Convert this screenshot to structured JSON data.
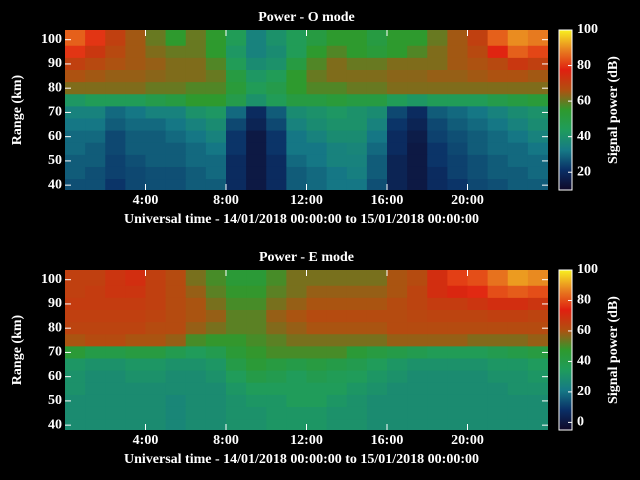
{
  "chart_data": [
    {
      "type": "heatmap",
      "title": "Power - O mode",
      "xlabel": "Universal time - 14/01/2018 00:00:00 to 15/01/2018 00:00:00",
      "ylabel": "Range (km)",
      "colorbar_label": "Signal power (dB)",
      "xlim": [
        0,
        24
      ],
      "xticks": [
        {
          "value": 4,
          "label": "4:00"
        },
        {
          "value": 8,
          "label": "8:00"
        },
        {
          "value": 12,
          "label": "12:00"
        },
        {
          "value": 16,
          "label": "16:00"
        },
        {
          "value": 20,
          "label": "20:00"
        }
      ],
      "ylim": [
        38,
        104
      ],
      "yticks": [
        40,
        50,
        60,
        70,
        80,
        90,
        100
      ],
      "clim": [
        10,
        100
      ],
      "cticks": [
        20,
        40,
        60,
        80,
        100
      ],
      "colormap": [
        "#100828",
        "#0a2f66",
        "#167a86",
        "#1f9c5c",
        "#2e9a2e",
        "#b05010",
        "#e02010",
        "#e88020",
        "#f8f020"
      ],
      "x": [
        0.5,
        1.5,
        2.5,
        3.5,
        4.5,
        5.5,
        6.5,
        7.5,
        8.5,
        9.5,
        10.5,
        11.5,
        12.5,
        13.5,
        14.5,
        15.5,
        16.5,
        17.5,
        18.5,
        19.5,
        20.5,
        21.5,
        22.5,
        23.5
      ],
      "y": [
        100,
        95,
        90,
        85,
        80,
        75,
        70,
        65,
        60,
        55,
        50,
        45,
        40
      ],
      "z": [
        [
          85,
          80,
          70,
          65,
          60,
          55,
          60,
          55,
          45,
          35,
          40,
          45,
          50,
          55,
          55,
          50,
          55,
          55,
          60,
          65,
          70,
          85,
          90,
          88
        ],
        [
          80,
          72,
          68,
          65,
          62,
          60,
          60,
          55,
          42,
          35,
          38,
          45,
          55,
          58,
          55,
          52,
          55,
          58,
          62,
          65,
          68,
          78,
          85,
          82
        ],
        [
          70,
          68,
          66,
          65,
          64,
          62,
          62,
          58,
          45,
          38,
          40,
          50,
          58,
          62,
          60,
          60,
          62,
          62,
          62,
          65,
          66,
          68,
          72,
          70
        ],
        [
          66,
          65,
          64,
          64,
          63,
          62,
          62,
          60,
          50,
          42,
          45,
          55,
          60,
          62,
          62,
          62,
          63,
          63,
          64,
          64,
          65,
          66,
          66,
          65
        ],
        [
          62,
          62,
          62,
          62,
          60,
          60,
          58,
          58,
          52,
          45,
          48,
          55,
          58,
          58,
          60,
          60,
          62,
          62,
          62,
          62,
          62,
          62,
          62,
          62
        ],
        [
          42,
          45,
          45,
          45,
          48,
          50,
          55,
          55,
          48,
          40,
          45,
          50,
          50,
          52,
          50,
          50,
          45,
          42,
          45,
          45,
          45,
          48,
          50,
          52
        ],
        [
          35,
          35,
          30,
          32,
          35,
          35,
          40,
          42,
          30,
          20,
          28,
          38,
          40,
          42,
          40,
          38,
          25,
          20,
          28,
          30,
          32,
          35,
          38,
          40
        ],
        [
          32,
          32,
          28,
          30,
          30,
          32,
          35,
          38,
          25,
          18,
          25,
          35,
          38,
          40,
          40,
          35,
          22,
          18,
          25,
          28,
          30,
          32,
          35,
          38
        ],
        [
          30,
          30,
          25,
          28,
          28,
          30,
          32,
          35,
          22,
          15,
          22,
          32,
          35,
          38,
          38,
          32,
          20,
          16,
          24,
          26,
          28,
          30,
          32,
          35
        ],
        [
          30,
          28,
          25,
          28,
          28,
          28,
          30,
          32,
          22,
          15,
          22,
          32,
          32,
          35,
          36,
          30,
          20,
          15,
          22,
          25,
          28,
          30,
          30,
          32
        ],
        [
          28,
          28,
          24,
          26,
          28,
          28,
          30,
          30,
          20,
          15,
          20,
          30,
          32,
          35,
          35,
          28,
          18,
          15,
          22,
          24,
          26,
          28,
          30,
          30
        ],
        [
          28,
          26,
          24,
          25,
          26,
          26,
          28,
          30,
          20,
          15,
          20,
          28,
          30,
          32,
          34,
          28,
          18,
          15,
          20,
          24,
          26,
          28,
          28,
          30
        ],
        [
          26,
          26,
          22,
          25,
          26,
          26,
          28,
          28,
          20,
          15,
          20,
          28,
          30,
          32,
          32,
          26,
          18,
          15,
          20,
          22,
          25,
          26,
          28,
          28
        ]
      ]
    },
    {
      "type": "heatmap",
      "title": "Power - E mode",
      "xlabel": "Universal time - 14/01/2018 00:00:00 to 15/01/2018 00:00:00",
      "ylabel": "Range (km)",
      "colorbar_label": "Signal power (dB)",
      "xlim": [
        0,
        24
      ],
      "xticks": [
        {
          "value": 4,
          "label": "4:00"
        },
        {
          "value": 8,
          "label": "8:00"
        },
        {
          "value": 12,
          "label": "12:00"
        },
        {
          "value": 16,
          "label": "16:00"
        },
        {
          "value": 20,
          "label": "20:00"
        }
      ],
      "ylim": [
        38,
        104
      ],
      "yticks": [
        40,
        50,
        60,
        70,
        80,
        90,
        100
      ],
      "clim": [
        -5,
        100
      ],
      "cticks": [
        0,
        20,
        40,
        60,
        80,
        100
      ],
      "colormap": [
        "#100828",
        "#0a2f66",
        "#167a86",
        "#1f9c5c",
        "#2e9a2e",
        "#b05010",
        "#e02010",
        "#e88020",
        "#f8f020"
      ],
      "x": [
        0.5,
        1.5,
        2.5,
        3.5,
        4.5,
        5.5,
        6.5,
        7.5,
        8.5,
        9.5,
        10.5,
        11.5,
        12.5,
        13.5,
        14.5,
        15.5,
        16.5,
        17.5,
        18.5,
        19.5,
        20.5,
        21.5,
        22.5,
        23.5
      ],
      "y": [
        100,
        95,
        90,
        85,
        80,
        75,
        70,
        65,
        60,
        55,
        50,
        45,
        40
      ],
      "z": [
        [
          65,
          65,
          68,
          70,
          65,
          62,
          55,
          50,
          45,
          45,
          50,
          55,
          55,
          55,
          55,
          55,
          60,
          62,
          70,
          78,
          80,
          85,
          90,
          88
        ],
        [
          65,
          66,
          68,
          68,
          65,
          62,
          58,
          52,
          48,
          48,
          52,
          55,
          58,
          58,
          58,
          58,
          60,
          64,
          70,
          72,
          75,
          80,
          82,
          80
        ],
        [
          66,
          66,
          66,
          66,
          65,
          62,
          60,
          55,
          50,
          50,
          55,
          58,
          60,
          60,
          60,
          60,
          62,
          64,
          66,
          66,
          68,
          70,
          70,
          68
        ],
        [
          65,
          65,
          65,
          65,
          64,
          62,
          60,
          58,
          52,
          52,
          58,
          60,
          62,
          62,
          62,
          62,
          62,
          63,
          64,
          64,
          64,
          65,
          65,
          64
        ],
        [
          64,
          64,
          64,
          64,
          62,
          62,
          58,
          55,
          52,
          52,
          56,
          58,
          60,
          60,
          60,
          60,
          62,
          62,
          62,
          62,
          62,
          62,
          62,
          62
        ],
        [
          60,
          62,
          62,
          60,
          60,
          58,
          50,
          48,
          48,
          50,
          52,
          55,
          55,
          55,
          55,
          55,
          58,
          58,
          58,
          58,
          56,
          56,
          56,
          58
        ],
        [
          45,
          40,
          40,
          42,
          42,
          38,
          35,
          38,
          45,
          48,
          50,
          50,
          50,
          50,
          45,
          42,
          40,
          38,
          36,
          36,
          36,
          38,
          40,
          42
        ],
        [
          32,
          30,
          30,
          32,
          32,
          30,
          30,
          32,
          40,
          45,
          42,
          40,
          42,
          40,
          38,
          35,
          32,
          30,
          30,
          30,
          30,
          32,
          32,
          34
        ],
        [
          30,
          28,
          28,
          30,
          30,
          28,
          28,
          30,
          35,
          40,
          38,
          35,
          38,
          36,
          35,
          32,
          30,
          28,
          28,
          28,
          28,
          30,
          30,
          32
        ],
        [
          30,
          28,
          28,
          28,
          28,
          28,
          28,
          28,
          32,
          35,
          35,
          35,
          35,
          35,
          32,
          30,
          28,
          28,
          28,
          28,
          28,
          28,
          30,
          30
        ],
        [
          28,
          28,
          28,
          28,
          28,
          26,
          28,
          28,
          30,
          32,
          32,
          35,
          35,
          32,
          30,
          28,
          28,
          28,
          28,
          28,
          28,
          28,
          28,
          28
        ],
        [
          28,
          28,
          28,
          28,
          28,
          26,
          28,
          28,
          30,
          30,
          32,
          32,
          32,
          30,
          30,
          28,
          28,
          28,
          28,
          28,
          28,
          28,
          28,
          28
        ],
        [
          28,
          28,
          28,
          28,
          28,
          26,
          28,
          28,
          30,
          30,
          32,
          32,
          32,
          30,
          30,
          28,
          28,
          28,
          28,
          28,
          28,
          28,
          28,
          28
        ]
      ]
    }
  ]
}
